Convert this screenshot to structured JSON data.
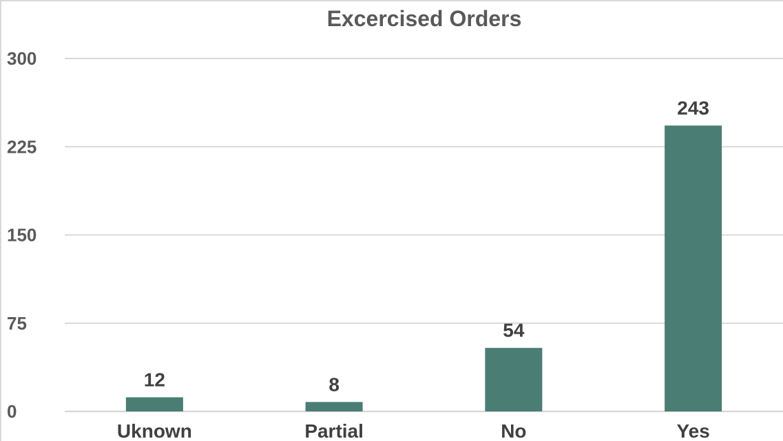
{
  "chart_data": {
    "type": "bar",
    "title": "Excercised Orders",
    "categories": [
      "Uknown",
      "Partial",
      "No",
      "Yes"
    ],
    "values": [
      12,
      8,
      54,
      243
    ],
    "data_labels": [
      "12",
      "8",
      "54",
      "243"
    ],
    "ylim": [
      0,
      300
    ],
    "yticks": [
      0,
      75,
      150,
      225,
      300
    ],
    "ytick_labels": [
      "0",
      "75",
      "150",
      "225",
      "300"
    ],
    "grid": true,
    "legend": "none",
    "bar_color": "#4a7d74",
    "xlabel": "",
    "ylabel": ""
  }
}
